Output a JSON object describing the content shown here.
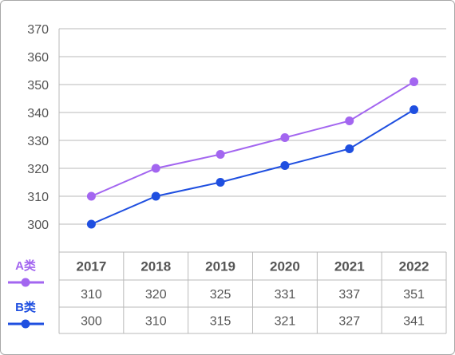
{
  "chart_data": {
    "type": "line",
    "title": "",
    "xlabel": "",
    "ylabel": "",
    "ylim": [
      290,
      370
    ],
    "y_ticks": [
      "300",
      "310",
      "320",
      "330",
      "340",
      "350",
      "360",
      "370"
    ],
    "grid": "horizontal",
    "x": [
      "2017",
      "2018",
      "2019",
      "2020",
      "2021",
      "2022"
    ],
    "series": [
      {
        "name": "A类",
        "color": "#a366f0",
        "values": [
          310,
          320,
          325,
          331,
          337,
          351
        ]
      },
      {
        "name": "B类",
        "color": "#1f4fe0",
        "values": [
          300,
          310,
          315,
          321,
          327,
          341
        ]
      }
    ],
    "table": {
      "header": [
        "2017",
        "2018",
        "2019",
        "2020",
        "2021",
        "2022"
      ],
      "rows": [
        [
          "310",
          "320",
          "325",
          "331",
          "337",
          "351"
        ],
        [
          "300",
          "310",
          "315",
          "321",
          "327",
          "341"
        ]
      ]
    },
    "legend_position": "left of table"
  }
}
